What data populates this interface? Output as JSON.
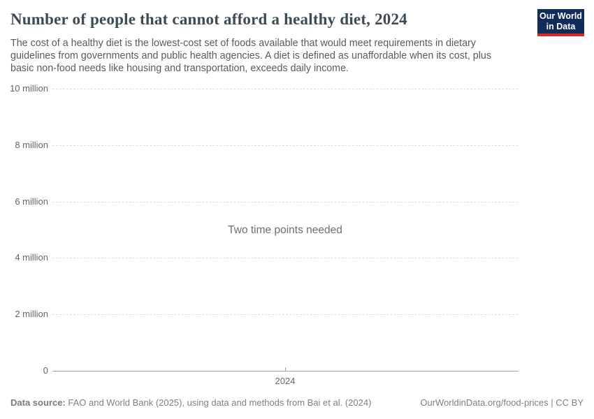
{
  "header": {
    "title": "Number of people that cannot afford a healthy diet, 2024",
    "subtitle": "The cost of a healthy diet is the lowest-cost set of foods available that would meet requirements in dietary guidelines from governments and public health agencies. A diet is defined as unaffordable when its cost, plus basic non-food needs like housing and transportation, exceeds daily income.",
    "logo": {
      "line1": "Our World",
      "line2": "in Data"
    }
  },
  "chart_data": {
    "type": "line",
    "title": "Number of people that cannot afford a healthy diet, 2024",
    "series": [],
    "message": "Two time points needed",
    "xticks": [
      "2024"
    ],
    "yticks": [
      {
        "value": 0,
        "label": "0"
      },
      {
        "value": 2000000,
        "label": "2 million"
      },
      {
        "value": 4000000,
        "label": "4 million"
      },
      {
        "value": 6000000,
        "label": "6 million"
      },
      {
        "value": 8000000,
        "label": "8 million"
      },
      {
        "value": 10000000,
        "label": "10 million"
      }
    ],
    "ylim": [
      0,
      10000000
    ],
    "grid": "horizontal-dashed",
    "legend": "none"
  },
  "footer": {
    "datasource_label": "Data source:",
    "datasource_text": " FAO and World Bank (2025), using data and methods from Bai et al. (2024)",
    "link_text": "OurWorldinData.org/food-prices | CC BY"
  },
  "colors": {
    "logo_bg": "#102d59",
    "logo_accent": "#d52b27",
    "title": "#3b4c54",
    "subtitle": "#5b5b5b",
    "axis_text": "#666666",
    "gridline": "#dddddd",
    "axis_line": "#a1a1a1",
    "message": "#6e6e6e",
    "footer_text": "#808080"
  }
}
